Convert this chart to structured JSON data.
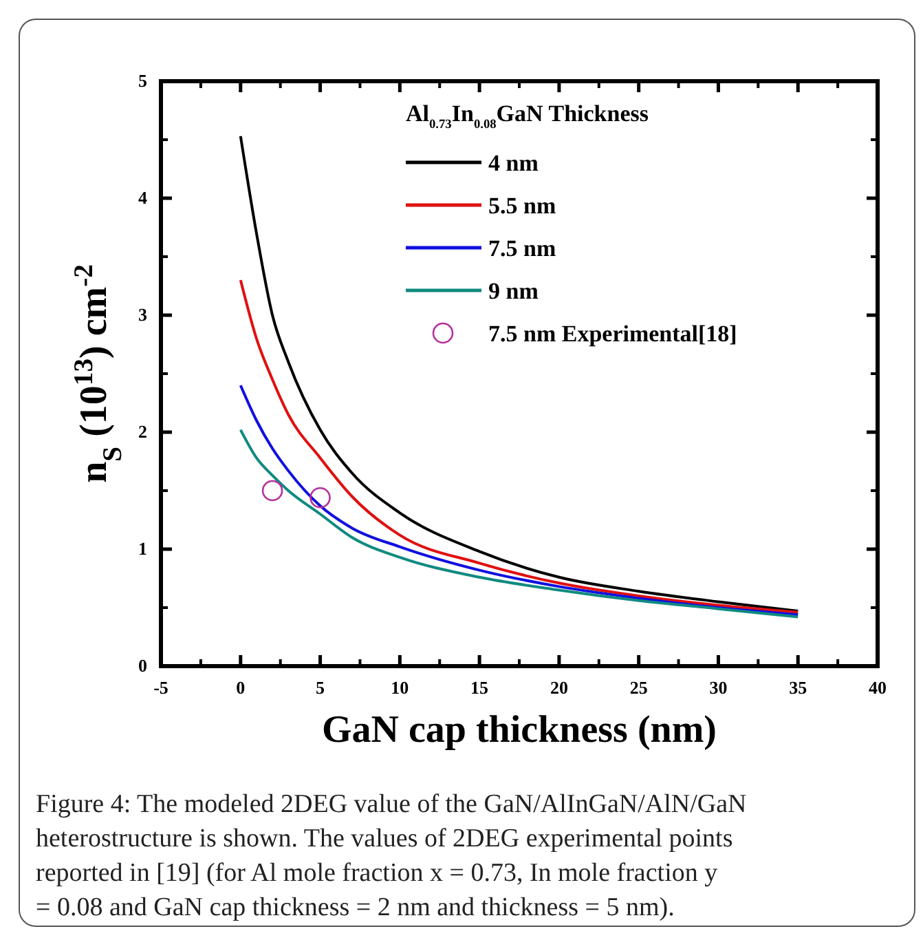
{
  "chart_data": {
    "type": "line",
    "xlabel": "GaN cap thickness (nm)",
    "ylabel": "n$_{S}$ (10$^{13}$) cm$^{-2}$",
    "legend_title": "Al$_{0.73}$In$_{0.08}$GaN Thickness",
    "xlim": [
      -5,
      40
    ],
    "xticks": [
      -5,
      0,
      5,
      10,
      15,
      20,
      25,
      30,
      35,
      40
    ],
    "ylim": [
      0,
      5
    ],
    "yticks": [
      0,
      1,
      2,
      3,
      4,
      5
    ],
    "grid": false,
    "legend": "top right",
    "x": [
      0,
      1,
      2,
      3,
      5,
      7,
      10,
      15,
      20,
      25,
      30,
      35
    ],
    "series": [
      {
        "name": "4 nm",
        "color": "#000000",
        "values": [
          4.53,
          3.7,
          3.0,
          2.6,
          2.02,
          1.65,
          1.31,
          0.98,
          0.76,
          0.64,
          0.55,
          0.47
        ]
      },
      {
        "name": "5.5 nm",
        "color": "#e01010",
        "values": [
          3.3,
          2.8,
          2.45,
          2.15,
          1.78,
          1.45,
          1.12,
          0.88,
          0.71,
          0.6,
          0.52,
          0.46
        ]
      },
      {
        "name": "7.5 nm",
        "color": "#1010e0",
        "values": [
          2.4,
          2.1,
          1.86,
          1.67,
          1.37,
          1.18,
          1.02,
          0.82,
          0.68,
          0.58,
          0.5,
          0.44
        ]
      },
      {
        "name": "9 nm",
        "color": "#108a80",
        "values": [
          2.02,
          1.78,
          1.63,
          1.5,
          1.3,
          1.1,
          0.93,
          0.76,
          0.65,
          0.56,
          0.49,
          0.42
        ]
      },
      {
        "name": "7.5 nm Experimental[18]",
        "type": "scatter",
        "marker": "circle",
        "color": "#b8309a",
        "x": [
          2,
          5
        ],
        "values": [
          1.5,
          1.44
        ]
      }
    ],
    "annotations": [
      "Figure 4: The modeled 2DEG value of the GaN/AlInGaN/AlN/GaN heterostructure is shown. The values of 2DEG experimental points reported in [19] (for Al mole fraction x = 0.73, In mole fraction y = 0.08 and GaN cap thickness = 2 nm and thickness = 5 nm)."
    ]
  }
}
